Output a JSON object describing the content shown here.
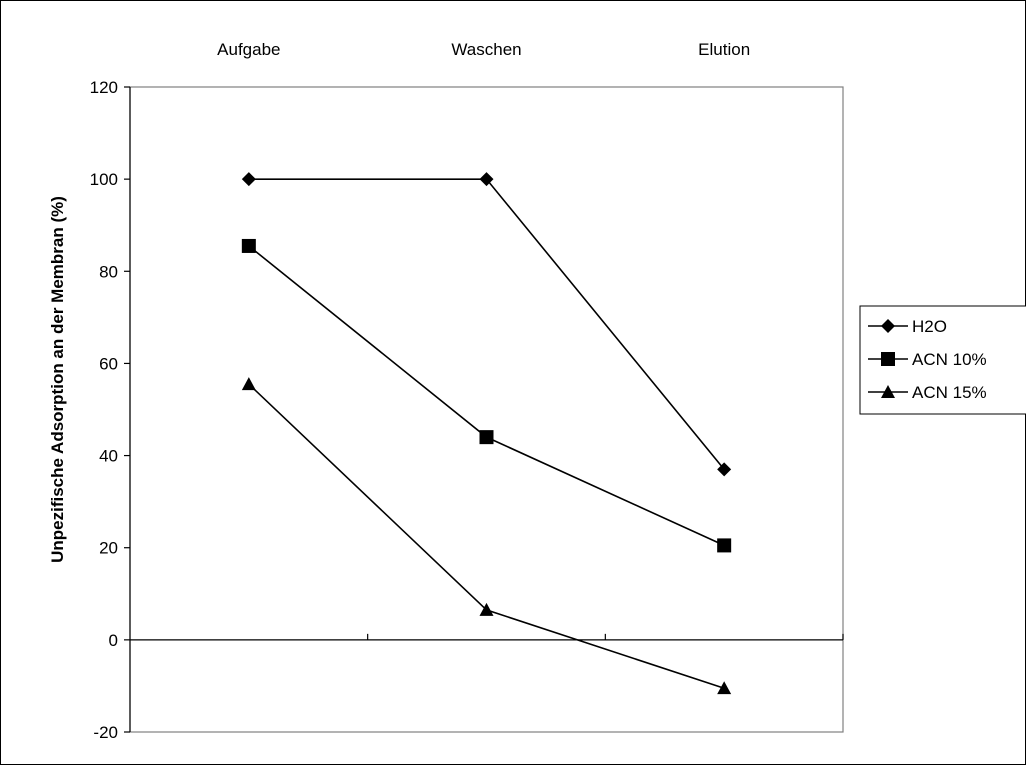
{
  "chart_data": {
    "type": "line",
    "title": "",
    "categories": [
      "Aufgabe",
      "Waschen",
      "Elution"
    ],
    "xlabel": "",
    "ylabel": "Unpezifische Adsorption an der Membran (%)",
    "ylim": [
      -20,
      120
    ],
    "yticks": [
      -20,
      0,
      20,
      40,
      60,
      80,
      100,
      120
    ],
    "category_axis_position": "top",
    "grid": false,
    "legend": "right",
    "series": [
      {
        "name": "H2O",
        "marker": "diamond",
        "values": [
          100,
          100,
          37
        ]
      },
      {
        "name": "ACN 10%",
        "marker": "square",
        "values": [
          85.5,
          44,
          20.5
        ]
      },
      {
        "name": "ACN 15%",
        "marker": "triangle",
        "values": [
          55.5,
          6.5,
          -10.5
        ]
      }
    ],
    "line_color": "#000000",
    "plot_border_color": "#808080"
  }
}
